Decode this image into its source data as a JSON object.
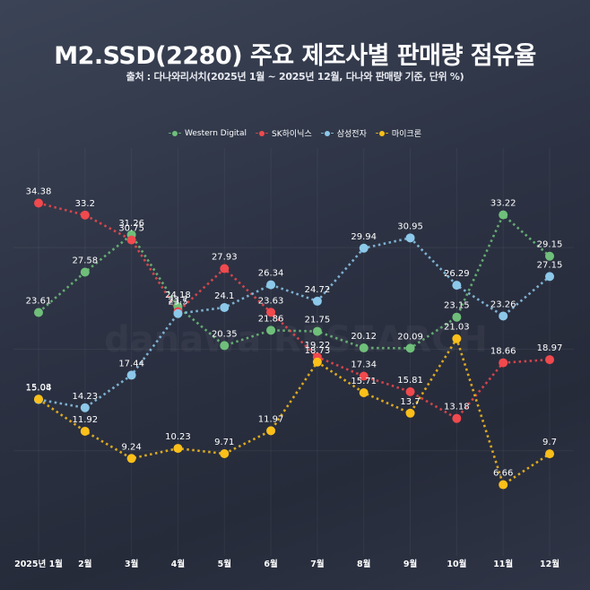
{
  "header": {
    "title": "M2.SSD(2280) 주요 제조사별 판매량 점유율",
    "subtitle": "출처 : 다나와리서치(2025년 1월 ~ 2025년 12월, 다나와 판매량 기준, 단위 %)"
  },
  "watermark": "danawa RESEARCH",
  "chart_data": {
    "type": "line",
    "title": "M2.SSD(2280) 주요 제조사별 판매량 점유율",
    "subtitle": "출처 : 다나와리서치(2025년 1월 ~ 2025년 12월, 다나와 판매량 기준, 단위 %)",
    "xlabel": "",
    "ylabel": "",
    "unit": "%",
    "categories": [
      "2025년 1월",
      "2월",
      "3월",
      "4월",
      "5월",
      "6월",
      "7월",
      "8월",
      "9월",
      "10월",
      "11월",
      "12월"
    ],
    "ylim": [
      0,
      36
    ],
    "grid": true,
    "legend_position": "top-center",
    "line_style": "dotted",
    "series": [
      {
        "name": "Western Digital",
        "color": "#6fbf7a",
        "values": [
          23.61,
          27.58,
          31.26,
          24.18,
          20.35,
          21.86,
          21.75,
          20.12,
          20.09,
          23.15,
          33.22,
          29.15
        ]
      },
      {
        "name": "SK하이닉스",
        "color": "#f0494e",
        "values": [
          34.38,
          33.2,
          30.75,
          23.7,
          27.93,
          23.63,
          19.22,
          17.34,
          15.81,
          13.18,
          18.66,
          18.97
        ]
      },
      {
        "name": "삼성전자",
        "color": "#8cc8ea",
        "values": [
          15.04,
          14.23,
          17.44,
          23.5,
          24.1,
          26.34,
          24.72,
          29.94,
          30.95,
          26.29,
          23.26,
          27.15
        ]
      },
      {
        "name": "마이크론",
        "color": "#fbbf1a",
        "values": [
          15.08,
          11.92,
          9.24,
          10.23,
          9.71,
          11.97,
          18.73,
          15.71,
          13.7,
          21.03,
          6.66,
          9.7
        ]
      }
    ]
  }
}
